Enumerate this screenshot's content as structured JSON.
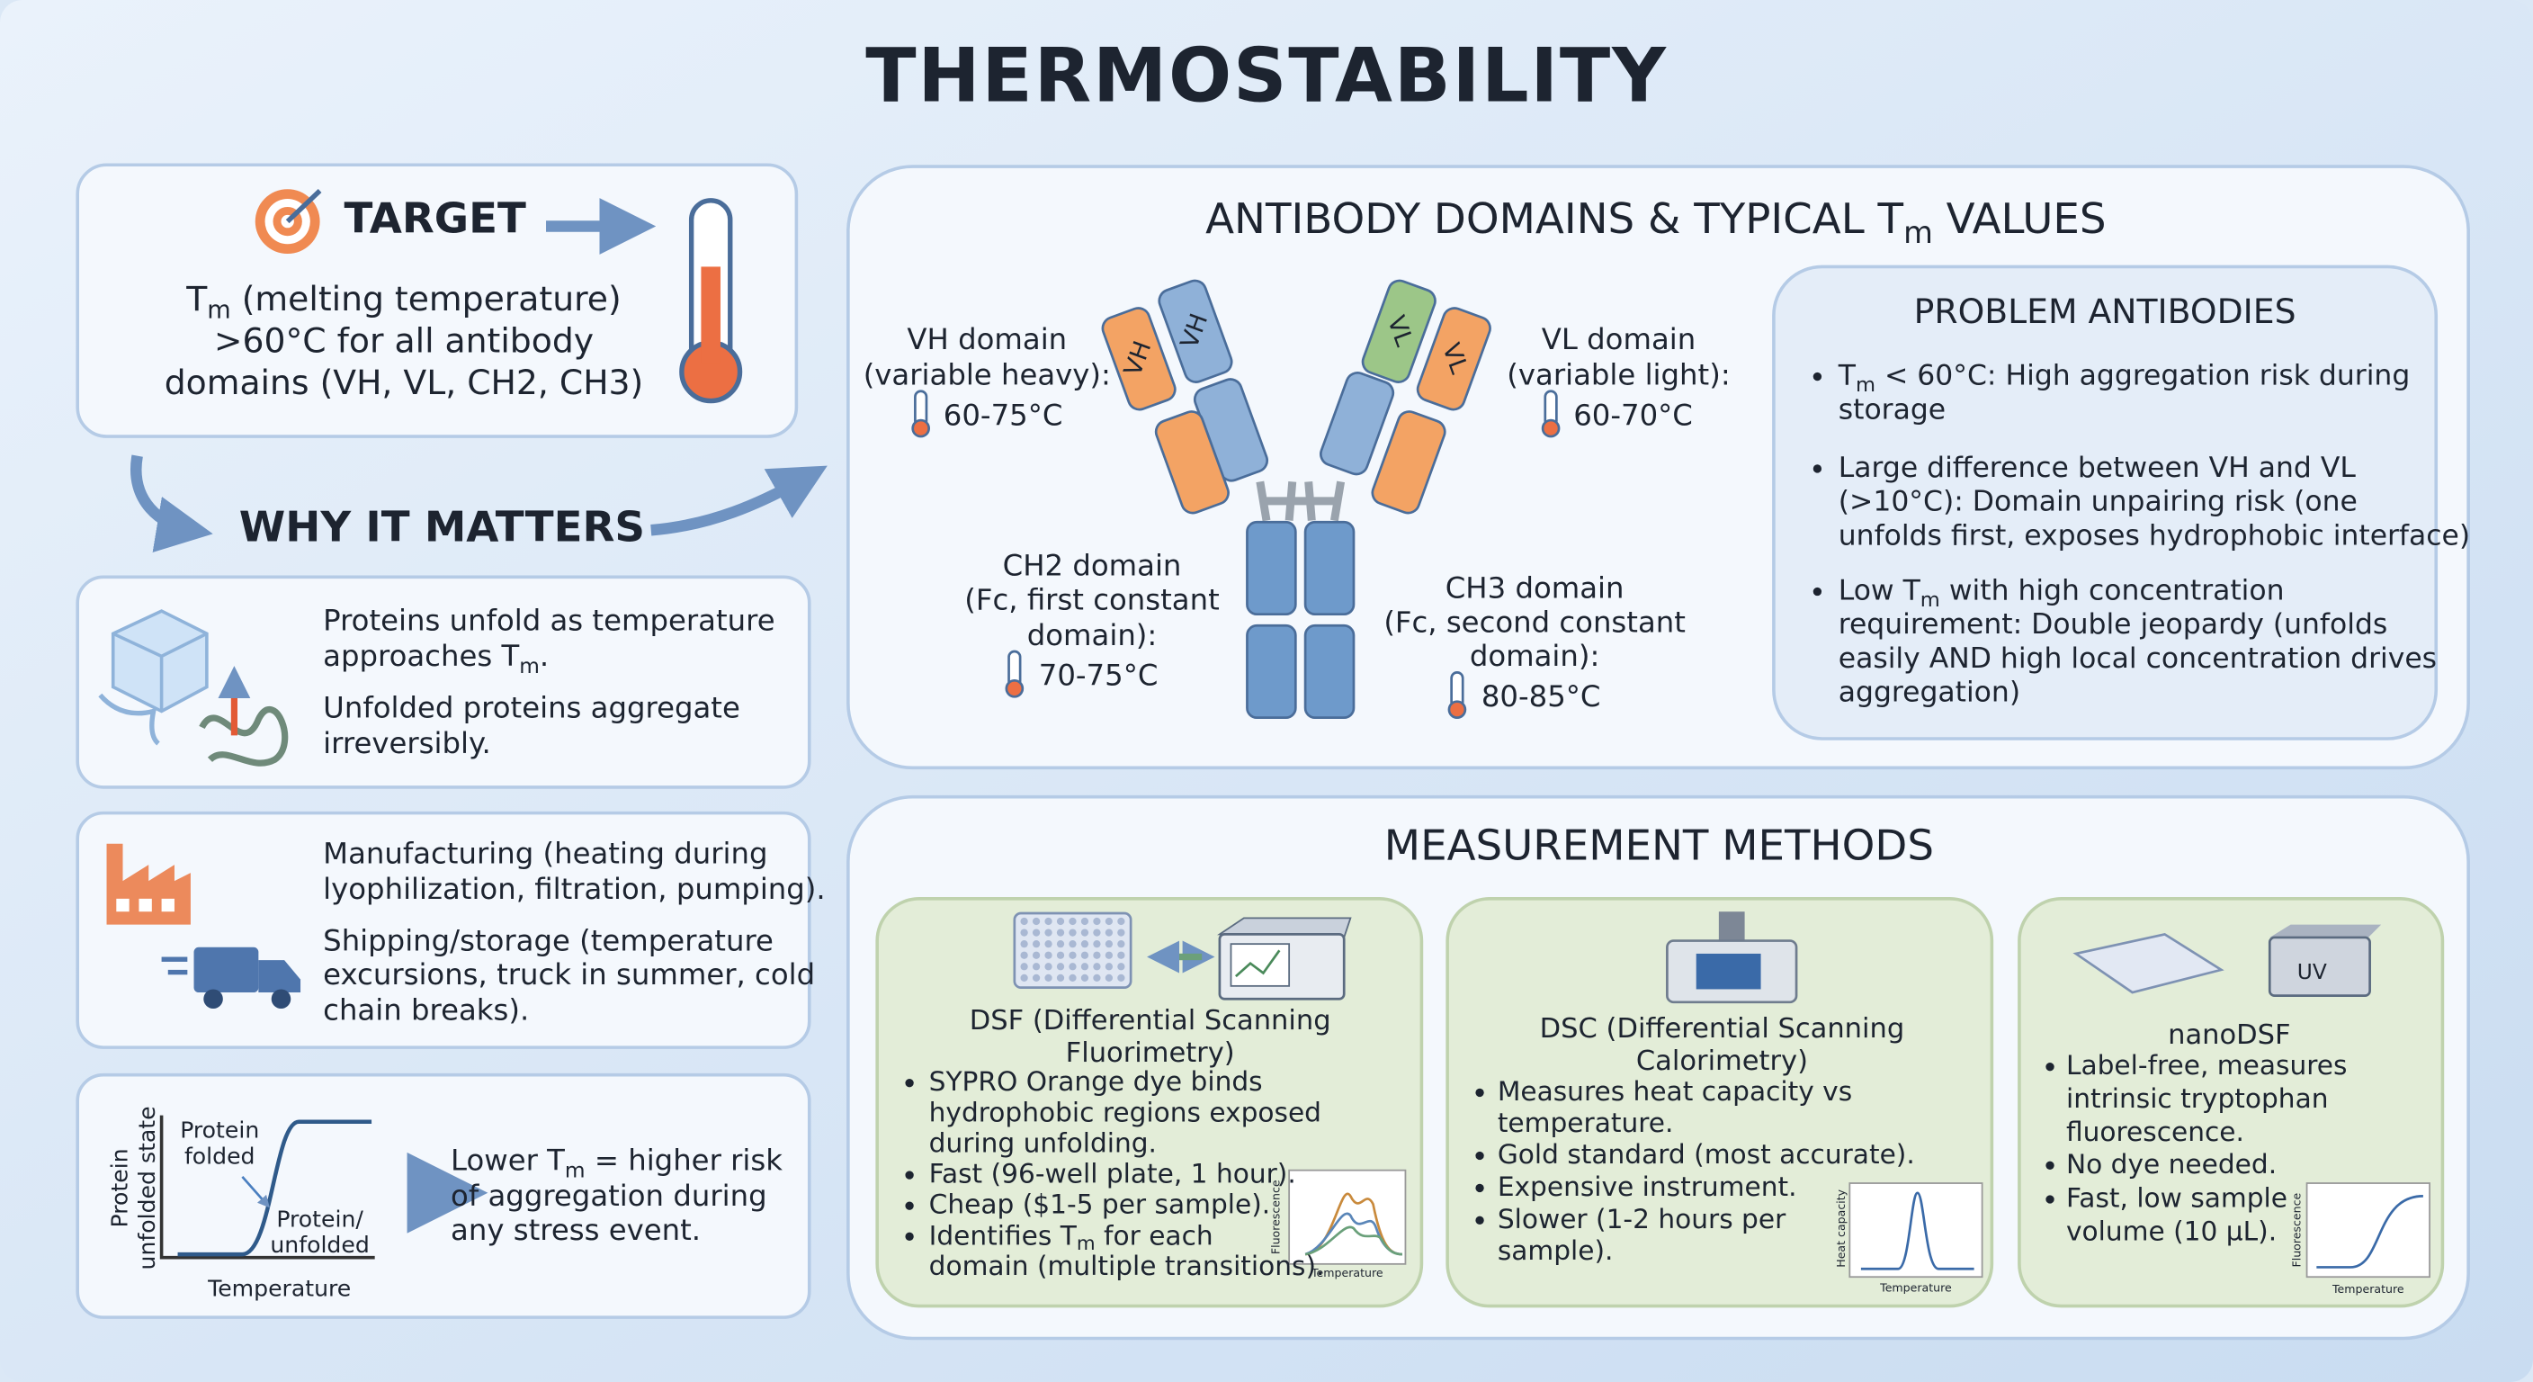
{
  "title": "THERMOSTABILITY",
  "target": {
    "heading": "TARGET",
    "lines": [
      [
        "T",
        "m",
        " (melting temperature)"
      ],
      ">60°C for all antibody",
      "domains (VH, VL, CH2, CH3)"
    ]
  },
  "why_it_matters": {
    "heading": "WHY IT MATTERS",
    "unfolding": [
      "Proteins unfold as temperature",
      [
        "approaches T",
        "m",
        "."
      ],
      "Unfolded proteins aggregate",
      "irreversibly."
    ],
    "stress": [
      "Manufacturing (heating during",
      "lyophilization, filtration, pumping).",
      "Shipping/storage (temperature",
      "excursions, truck in summer, cold",
      "chain breaks)."
    ],
    "risk": {
      "plot": {
        "y_label": [
          "Protein",
          "unfolded state"
        ],
        "x_label": "Temperature",
        "folded_label": [
          "Protein",
          "folded"
        ],
        "unfolded_label": [
          "Protein/",
          "unfolded"
        ]
      },
      "lines": [
        [
          "Lower T",
          "m",
          " = higher risk"
        ],
        "of aggregation during",
        "any stress event."
      ]
    }
  },
  "antibody_domains": {
    "heading": [
      "ANTIBODY DOMAINS & TYPICAL T",
      "m",
      " VALUES"
    ],
    "chain_labels": [
      "VH",
      "VH",
      "VL",
      "VL"
    ],
    "vh": {
      "lines": [
        "VH domain",
        "(variable heavy):"
      ],
      "tm": "60-75°C"
    },
    "vl": {
      "lines": [
        "VL domain",
        "(variable light):"
      ],
      "tm": "60-70°C"
    },
    "ch2": {
      "lines": [
        "CH2 domain",
        "(Fc, first constant",
        "domain):"
      ],
      "tm": "70-75°C"
    },
    "ch3": {
      "lines": [
        "CH3 domain",
        "(Fc, second constant",
        "domain):"
      ],
      "tm": "80-85°C"
    },
    "problem_antibodies": {
      "heading": "PROBLEM ANTIBODIES",
      "items": [
        [
          [
            "T",
            "m",
            " < 60°C: High aggregation risk during"
          ],
          "storage"
        ],
        [
          "Large difference between VH and VL",
          "(>10°C): Domain unpairing risk (one",
          "unfolds first, exposes hydrophobic interface)"
        ],
        [
          [
            "Low T",
            "m",
            " with high concentration"
          ],
          "requirement: Double jeopardy (unfolds",
          "easily AND high local concentration drives",
          "aggregation)"
        ]
      ]
    }
  },
  "measurement_methods": {
    "heading": "MEASUREMENT METHODS",
    "methods": [
      {
        "name": [
          "DSF (Differential Scanning",
          "Fluorimetry)"
        ],
        "bullets": [
          [
            "SYPRO Orange dye binds",
            "hydrophobic regions exposed",
            "during unfolding."
          ],
          [
            "Fast (96-well plate, 1 hour)."
          ],
          [
            "Cheap ($1-5 per sample)."
          ],
          [
            [
              "Identifies T",
              "m",
              " for each"
            ],
            "domain (multiple transitions)."
          ]
        ],
        "plot": {
          "y_label": "Fluorescence",
          "x_label": "Temperature"
        }
      },
      {
        "name": [
          "DSC (Differential Scanning",
          "Calorimetry)"
        ],
        "bullets": [
          [
            "Measures heat capacity vs",
            "temperature."
          ],
          [
            "Gold standard (most accurate)."
          ],
          [
            "Expensive instrument."
          ],
          [
            "Slower (1-2 hours per",
            "sample)."
          ]
        ],
        "plot": {
          "y_label": "Heat capacity",
          "x_label": "Temperature"
        }
      },
      {
        "name": [
          "nanoDSF"
        ],
        "instrument_label": "UV",
        "bullets": [
          [
            "Label-free, measures",
            "intrinsic tryptophan",
            "fluorescence."
          ],
          [
            "No dye needed."
          ],
          [
            "Fast, low sample",
            "volume (10 µL)."
          ]
        ],
        "plot": {
          "y_label": "Fluorescence",
          "x_label": "Temperature"
        }
      }
    ]
  }
}
